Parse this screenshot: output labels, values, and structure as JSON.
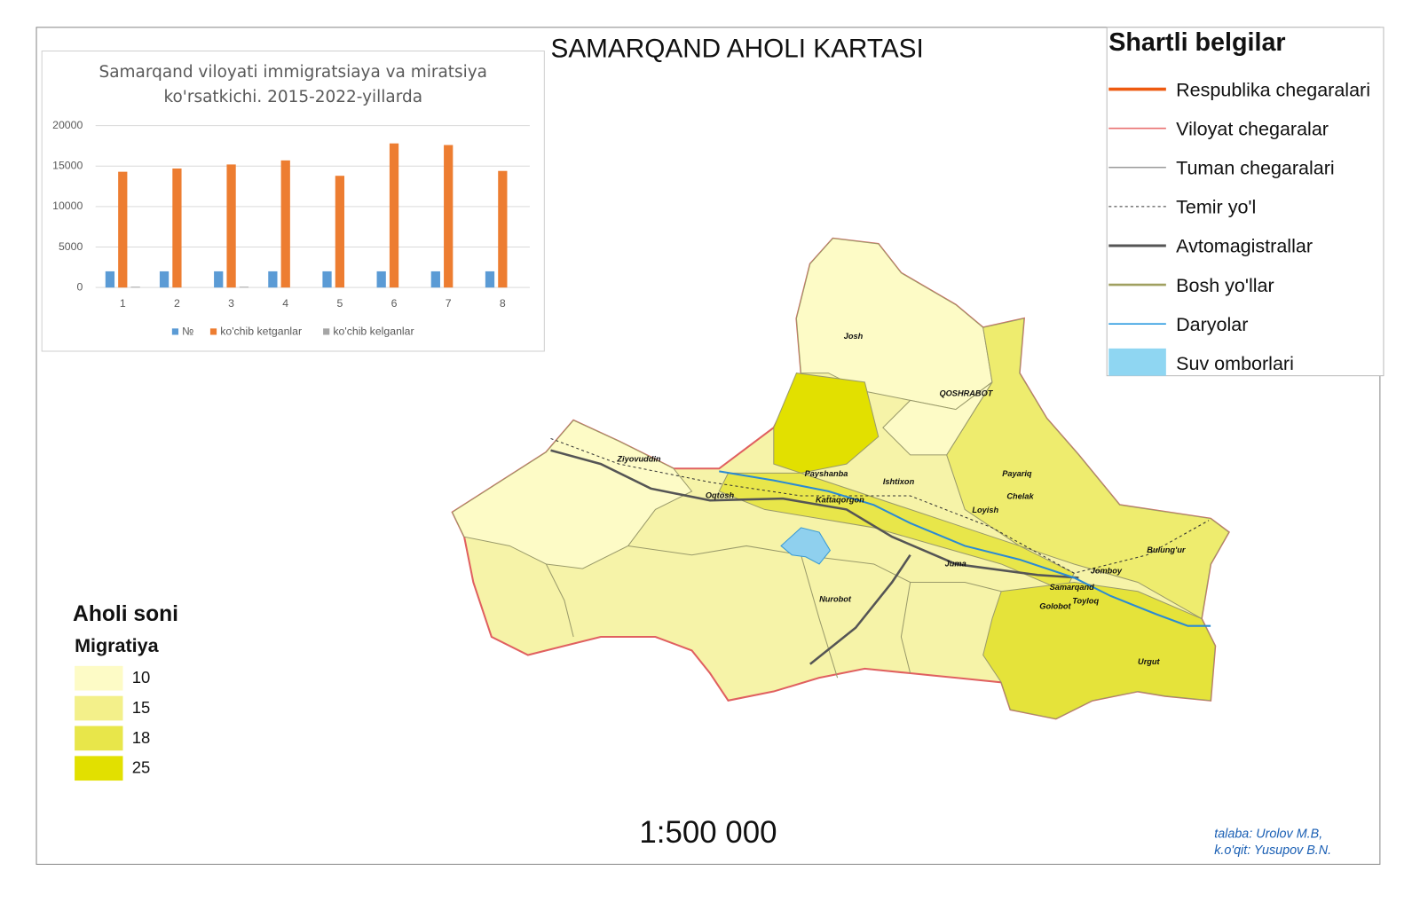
{
  "title": "SAMARQAND AHOLI KARTASI",
  "legend": {
    "title": "Shartli belgilar",
    "items": [
      "Respublika chegaralari",
      "Viloyat chegaralar",
      "Tuman chegaralari",
      "Temir yo'l",
      "Avtomagistrallar",
      "Bosh yo'llar",
      "Daryolar",
      "Suv omborlari"
    ]
  },
  "population_legend": {
    "title": "Aholi soni",
    "subtitle": "Migratiya",
    "classes": [
      10,
      15,
      18,
      25
    ],
    "colors": [
      "#fdfbc6",
      "#f3f08a",
      "#e8e64a",
      "#e2e000"
    ]
  },
  "places": [
    "Josh",
    "QOSHRABOT",
    "Ziyovuddin",
    "Payshanba",
    "Ishtixon",
    "Payariq",
    "Chelak",
    "Oqtosh",
    "Kattaqorgon",
    "Loyish",
    "Bulung'ur",
    "Jomboy",
    "Juma",
    "Samarqand",
    "Toyloq",
    "Golobot",
    "Nurobot",
    "Urgut"
  ],
  "scale": "1:500 000",
  "credits": [
    "talaba: Urolov M.B,",
    "k.o'qit: Yusupov B.N."
  ],
  "chart_data": {
    "type": "bar",
    "title": "Samarqand viloyati immigratsiaya va miratsiya ko'rsatkichi. 2015-2022-yillarda",
    "categories": [
      "1",
      "2",
      "3",
      "4",
      "5",
      "6",
      "7",
      "8"
    ],
    "series": [
      {
        "name": "№",
        "color": "#5b9bd5",
        "values": [
          2000,
          2000,
          2000,
          2000,
          2000,
          2000,
          2000,
          2000
        ]
      },
      {
        "name": "ko'chib ketganlar",
        "color": "#ed7d31",
        "values": [
          14300,
          14700,
          15200,
          15700,
          13800,
          17800,
          17600,
          14400
        ]
      },
      {
        "name": "ko'chib kelganlar",
        "color": "#a5a5a5",
        "values": [
          100,
          0,
          100,
          0,
          0,
          0,
          0,
          0
        ]
      }
    ],
    "ylim": [
      0,
      20000
    ],
    "yticks": [
      0,
      5000,
      10000,
      15000,
      20000
    ],
    "grid": true
  }
}
